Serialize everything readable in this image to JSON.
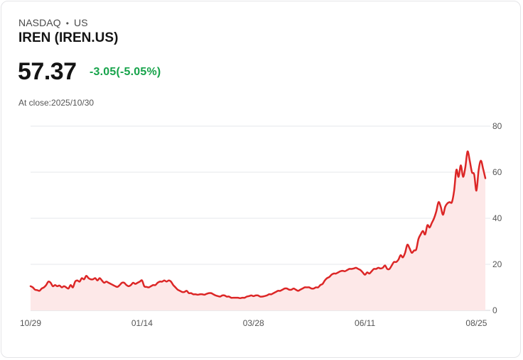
{
  "header": {
    "exchange": "NASDAQ",
    "separator": "•",
    "market": "US",
    "title": "IREN (IREN.US)",
    "price": "57.37",
    "change": "-3.05(-5.05%)",
    "close_label": "At close:2025/10/30"
  },
  "colors": {
    "line": "#dc2626",
    "fill": "#fde8e8",
    "change": "#16a34a",
    "grid": "#e5e7eb"
  },
  "chart_data": {
    "type": "area",
    "title": "",
    "xlabel": "",
    "ylabel": "",
    "ylim": [
      0,
      80
    ],
    "yticks": [
      0,
      20,
      40,
      60,
      80
    ],
    "xticks": [
      {
        "label": "10/29",
        "index": 0
      },
      {
        "label": "01/14",
        "index": 50
      },
      {
        "label": "03/28",
        "index": 100
      },
      {
        "label": "06/11",
        "index": 150
      },
      {
        "label": "08/25",
        "index": 200
      }
    ],
    "series": [
      {
        "name": "IREN",
        "values": [
          10.5,
          10,
          9,
          8.8,
          8.5,
          9.5,
          10,
          11,
          12.5,
          12,
          10.5,
          11,
          10.5,
          10.8,
          10,
          10.5,
          10,
          9.5,
          11,
          10,
          12.5,
          13,
          12.5,
          14,
          13.5,
          15,
          14,
          13.5,
          13.5,
          14,
          13,
          14,
          13,
          12,
          12.5,
          12,
          11.5,
          11,
          10.5,
          10.2,
          11,
          12,
          12,
          11,
          10.5,
          11,
          12,
          11.5,
          12,
          12.5,
          13,
          10.5,
          10.2,
          10,
          10.5,
          11,
          11,
          12,
          12.5,
          12.5,
          13,
          12.5,
          13,
          12.5,
          11,
          10,
          9,
          8.5,
          8,
          8,
          8.5,
          7.5,
          7.5,
          7,
          7,
          6.8,
          7,
          7,
          6.8,
          7.2,
          7.5,
          7.5,
          7,
          6.5,
          6.2,
          6,
          6.5,
          6.5,
          6,
          6,
          5.5,
          5.5,
          5.5,
          5.5,
          5.3,
          5.5,
          5.5,
          6,
          6.2,
          6.5,
          6.2,
          6.5,
          6.5,
          6,
          6,
          6.2,
          6.5,
          7,
          7,
          7.5,
          8,
          8.5,
          8.5,
          9,
          9.5,
          9.5,
          9,
          9,
          9.5,
          9,
          8.5,
          9,
          9.5,
          10,
          10,
          10,
          9.5,
          9.5,
          10,
          10,
          11,
          11.5,
          13,
          14,
          14.5,
          15.5,
          16,
          16,
          16.5,
          17,
          17.2,
          17,
          17.5,
          18,
          18,
          18.2,
          18.5,
          18,
          17.5,
          16.5,
          15.5,
          16.5,
          16,
          17,
          18,
          18,
          18.5,
          18.2,
          18.5,
          19.5,
          18,
          18,
          19.5,
          21,
          21,
          22,
          24,
          23,
          25,
          28.5,
          27,
          25,
          26,
          26.5,
          31,
          33,
          34.5,
          33,
          37,
          36,
          38,
          40,
          43,
          47,
          45,
          41.5,
          45,
          46.5,
          47,
          47,
          52,
          61,
          58,
          63,
          58,
          62,
          69,
          65,
          60,
          59,
          52,
          61,
          65,
          61.5,
          57.4
        ]
      }
    ]
  }
}
